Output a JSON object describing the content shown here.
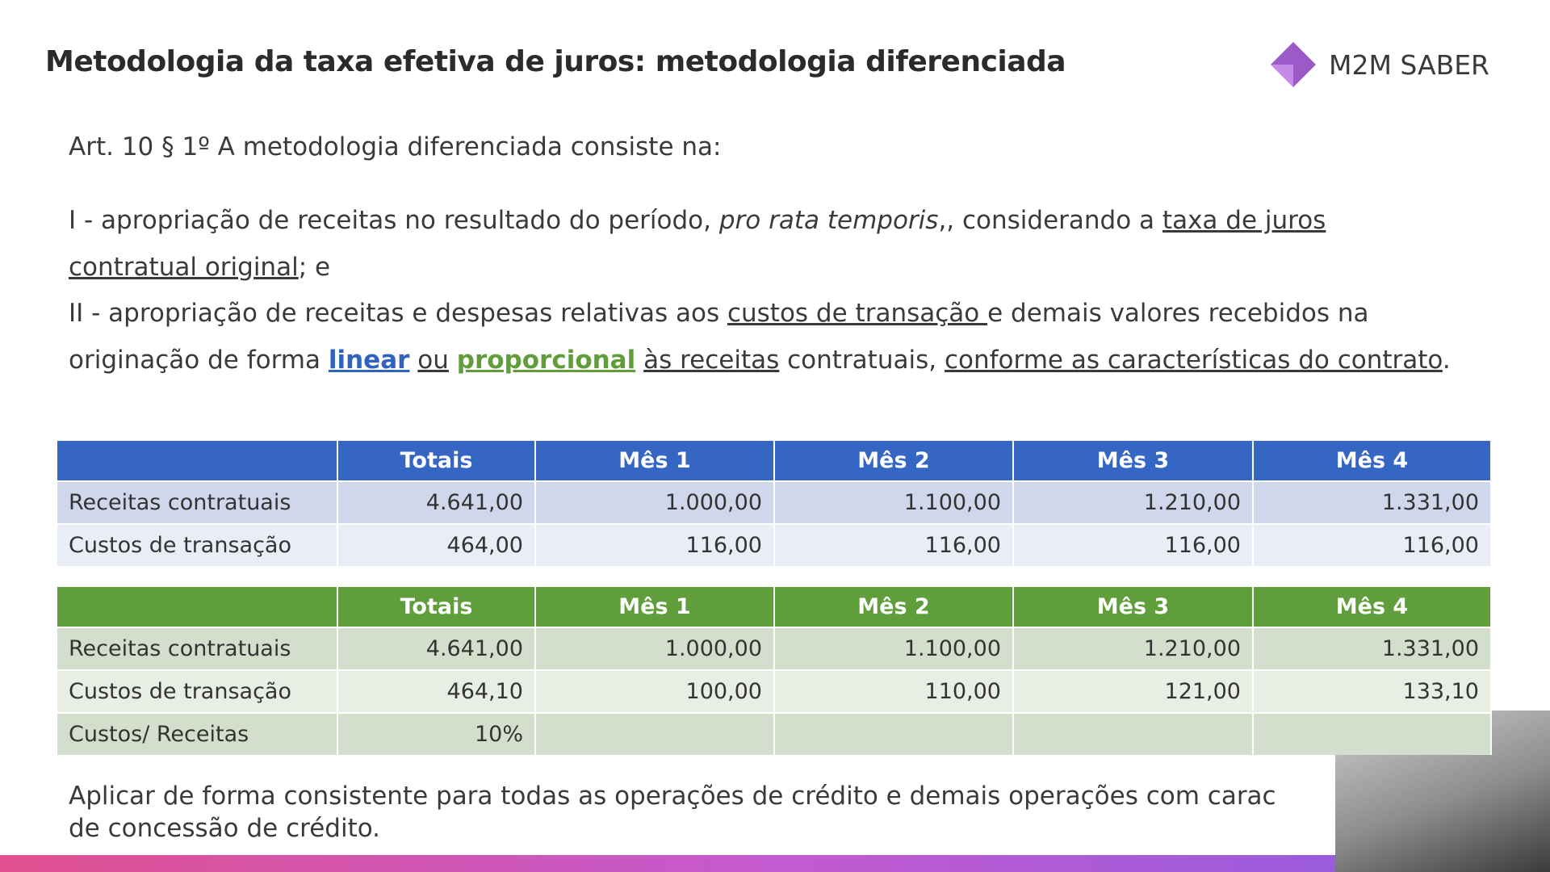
{
  "header": {
    "title": "Metodologia da taxa efetiva de juros: metodologia diferenciada",
    "logo": "M2M SABER"
  },
  "intro": "Art. 10 § 1º A metodologia diferenciada consiste na:",
  "item_1": [
    "I - apropriação de receitas no resultado do período, ",
    "pro rata temporis",
    ",, considerando a ",
    "taxa de juros contratual original",
    "; e"
  ],
  "item_2": [
    "II - apropriação de receitas e despesas relativas aos ",
    "custos de transação ",
    "e demais valores recebidos na originação de forma",
    "linear",
    "ou",
    "proporcional",
    "às receitas",
    "contratuais,",
    "conforme as características do contrato",
    "."
  ],
  "tables": [
    {
      "color": "#3566c4",
      "row_colors": [
        "#d0d7ea",
        "#e9edf6"
      ],
      "header": [
        "",
        "Totais",
        "Mês 1",
        "Mês 2",
        "Mês 3",
        "Mês 4"
      ],
      "rows": [
        [
          "Receitas contratuais",
          "4.641,00",
          "1.000,00",
          "1.100,00",
          "1.210,00",
          "1.331,00"
        ],
        [
          "Custos de transação",
          "464,00",
          "116,00",
          "116,00",
          "116,00",
          "116,00"
        ]
      ]
    },
    {
      "color": "#5f9e3a",
      "row_colors": [
        "#d3dfcc",
        "#e8eee4"
      ],
      "header": [
        "",
        "Totais",
        "Mês 1",
        "Mês 2",
        "Mês 3",
        "Mês 4"
      ],
      "rows": [
        [
          "Receitas contratuais",
          "4.641,00",
          "1.000,00",
          "1.100,00",
          "1.210,00",
          "1.331,00"
        ],
        [
          "Custos de transação",
          "464,10",
          "100,00",
          "110,00",
          "121,00",
          "133,10"
        ],
        [
          "Custos/ Receitas",
          "10%",
          "",
          "",
          "",
          ""
        ]
      ]
    }
  ],
  "footer": [
    "Aplicar de forma consistente para todas as operações de crédito e demais operações com carac",
    "de concessão de crédito."
  ]
}
